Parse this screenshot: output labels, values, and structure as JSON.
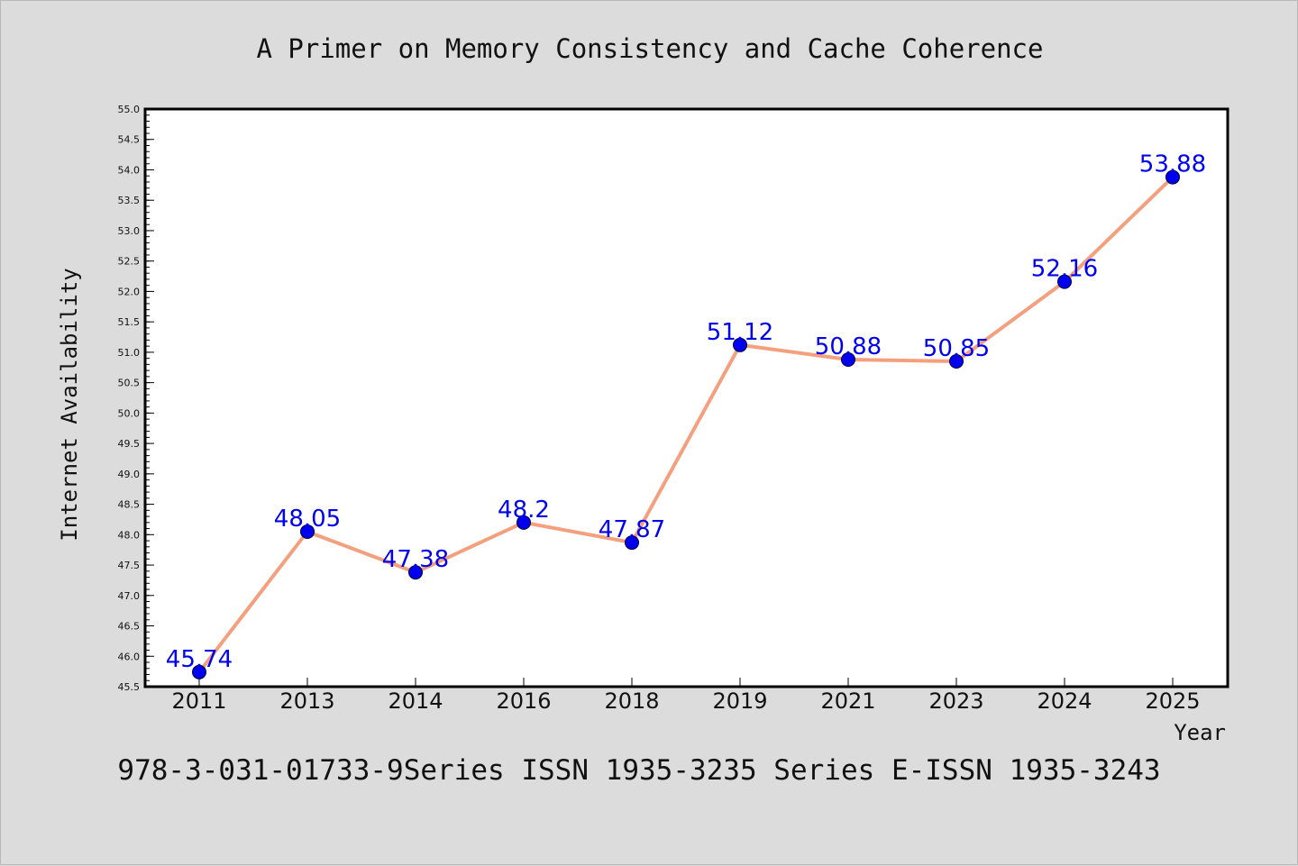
{
  "chart_data": {
    "type": "line",
    "title": "A Primer on Memory Consistency and Cache Coherence",
    "footer": "978-3-031-01733-9Series ISSN 1935-3235 Series E-ISSN 1935-3243",
    "xlabel": "Year",
    "ylabel": "Internet Availability",
    "categories": [
      "2011",
      "2013",
      "2014",
      "2016",
      "2018",
      "2019",
      "2021",
      "2023",
      "2024",
      "2025"
    ],
    "values": [
      45.74,
      48.05,
      47.38,
      48.2,
      47.87,
      51.12,
      50.88,
      50.85,
      52.16,
      53.88
    ],
    "data_labels": [
      "45.74",
      "48.05",
      "47.38",
      "48.2",
      "47.87",
      "51.12",
      "50.88",
      "50.85",
      "52.16",
      "53.88"
    ],
    "ylim": [
      45.5,
      55.0
    ],
    "y_ticks": [
      "45.5",
      "46.0",
      "46.5",
      "47.0",
      "47.5",
      "48.0",
      "48.5",
      "49.0",
      "49.5",
      "50.0",
      "50.5",
      "51.0",
      "51.5",
      "52.0",
      "52.5",
      "53.0",
      "53.5",
      "54.0",
      "54.5",
      "55.0"
    ],
    "grid": false,
    "legend": "none",
    "colors": {
      "line": "#f4a07e",
      "marker": "#0000ee",
      "data_label": "#0000ee",
      "plot_background": "#ffffff",
      "page_background": "#dcdcdc"
    }
  }
}
